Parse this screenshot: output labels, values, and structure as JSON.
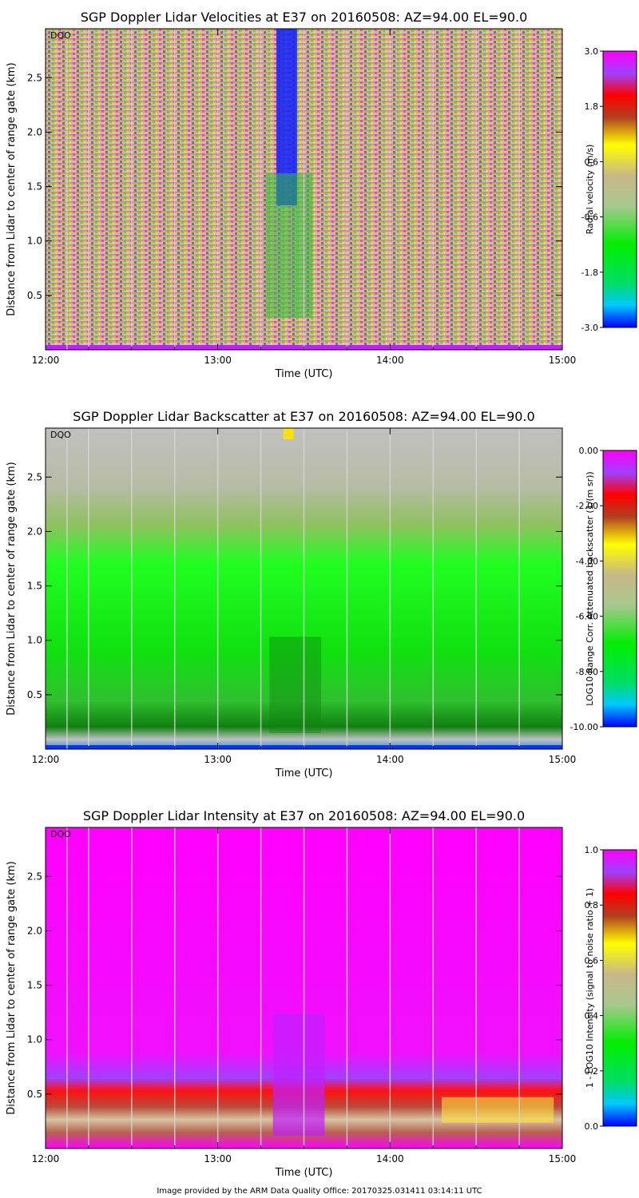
{
  "footer": "Image provided by the ARM Data Quality Office: 20170325.031411 03:14:11 UTC",
  "chart_data": [
    {
      "type": "heatmap",
      "title": "SGP Doppler Lidar Velocities at E37 on 20160508: AZ=94.00 EL=90.0",
      "xlabel": "Time (UTC)",
      "ylabel": "Distance from Lidar to center of range gate (km)",
      "colorbar_label": "Radial velocity (m/s)",
      "plot_tag": "DQO",
      "xlim": [
        12.0,
        15.0
      ],
      "ylim": [
        0.0,
        2.95
      ],
      "x_ticks": [
        12.0,
        13.0,
        14.0,
        15.0
      ],
      "x_tick_labels": [
        "12:00",
        "13:00",
        "14:00",
        "15:00"
      ],
      "y_ticks": [
        0.5,
        1.0,
        1.5,
        2.0,
        2.5
      ],
      "y_tick_labels": [
        "0.5",
        "1.0",
        "1.5",
        "2.0",
        "2.5"
      ],
      "colorbar_range": [
        -3.0,
        3.0
      ],
      "colorbar_ticks": [
        -3.0,
        -1.8,
        -0.6,
        0.6,
        1.8,
        3.0
      ],
      "colorbar_tick_labels": [
        "-3.0",
        "-1.8",
        "-0.6",
        "0.6",
        "1.8",
        "3.0"
      ]
    },
    {
      "type": "heatmap",
      "title": "SGP Doppler Lidar Backscatter at E37 on 20160508: AZ=94.00 EL=90.0",
      "xlabel": "Time (UTC)",
      "ylabel": "Distance from Lidar to center of range gate (km)",
      "colorbar_label": "LOG10 Range Corr. Attenuated backscatter (1/(m sr))",
      "plot_tag": "DQO",
      "xlim": [
        12.0,
        15.0
      ],
      "ylim": [
        0.0,
        2.95
      ],
      "x_ticks": [
        12.0,
        13.0,
        14.0,
        15.0
      ],
      "x_tick_labels": [
        "12:00",
        "13:00",
        "14:00",
        "15:00"
      ],
      "y_ticks": [
        0.5,
        1.0,
        1.5,
        2.0,
        2.5
      ],
      "y_tick_labels": [
        "0.5",
        "1.0",
        "1.5",
        "2.0",
        "2.5"
      ],
      "colorbar_range": [
        -10.0,
        0.0
      ],
      "colorbar_ticks": [
        -10.0,
        -8.0,
        -6.0,
        -4.0,
        -2.0,
        0.0
      ],
      "colorbar_tick_labels": [
        "-10.00",
        "-8.00",
        "-6.00",
        "-4.00",
        "-2.00",
        "0.00"
      ]
    },
    {
      "type": "heatmap",
      "title": "SGP Doppler Lidar Intensity at E37 on 20160508: AZ=94.00 EL=90.0",
      "xlabel": "Time (UTC)",
      "ylabel": "Distance from Lidar to center of range gate (km)",
      "colorbar_label": "1 - LOG10 Intensity (signal to noise ratio + 1)",
      "plot_tag": "DQO",
      "xlim": [
        12.0,
        15.0
      ],
      "ylim": [
        0.0,
        2.95
      ],
      "x_ticks": [
        12.0,
        13.0,
        14.0,
        15.0
      ],
      "x_tick_labels": [
        "12:00",
        "13:00",
        "14:00",
        "15:00"
      ],
      "y_ticks": [
        0.5,
        1.0,
        1.5,
        2.0,
        2.5
      ],
      "y_tick_labels": [
        "0.5",
        "1.0",
        "1.5",
        "2.0",
        "2.5"
      ],
      "colorbar_range": [
        0.0,
        1.0
      ],
      "colorbar_ticks": [
        0.0,
        0.2,
        0.4,
        0.6,
        0.8,
        1.0
      ],
      "colorbar_tick_labels": [
        "0.0",
        "0.2",
        "0.4",
        "0.6",
        "0.8",
        "1.0"
      ]
    }
  ]
}
